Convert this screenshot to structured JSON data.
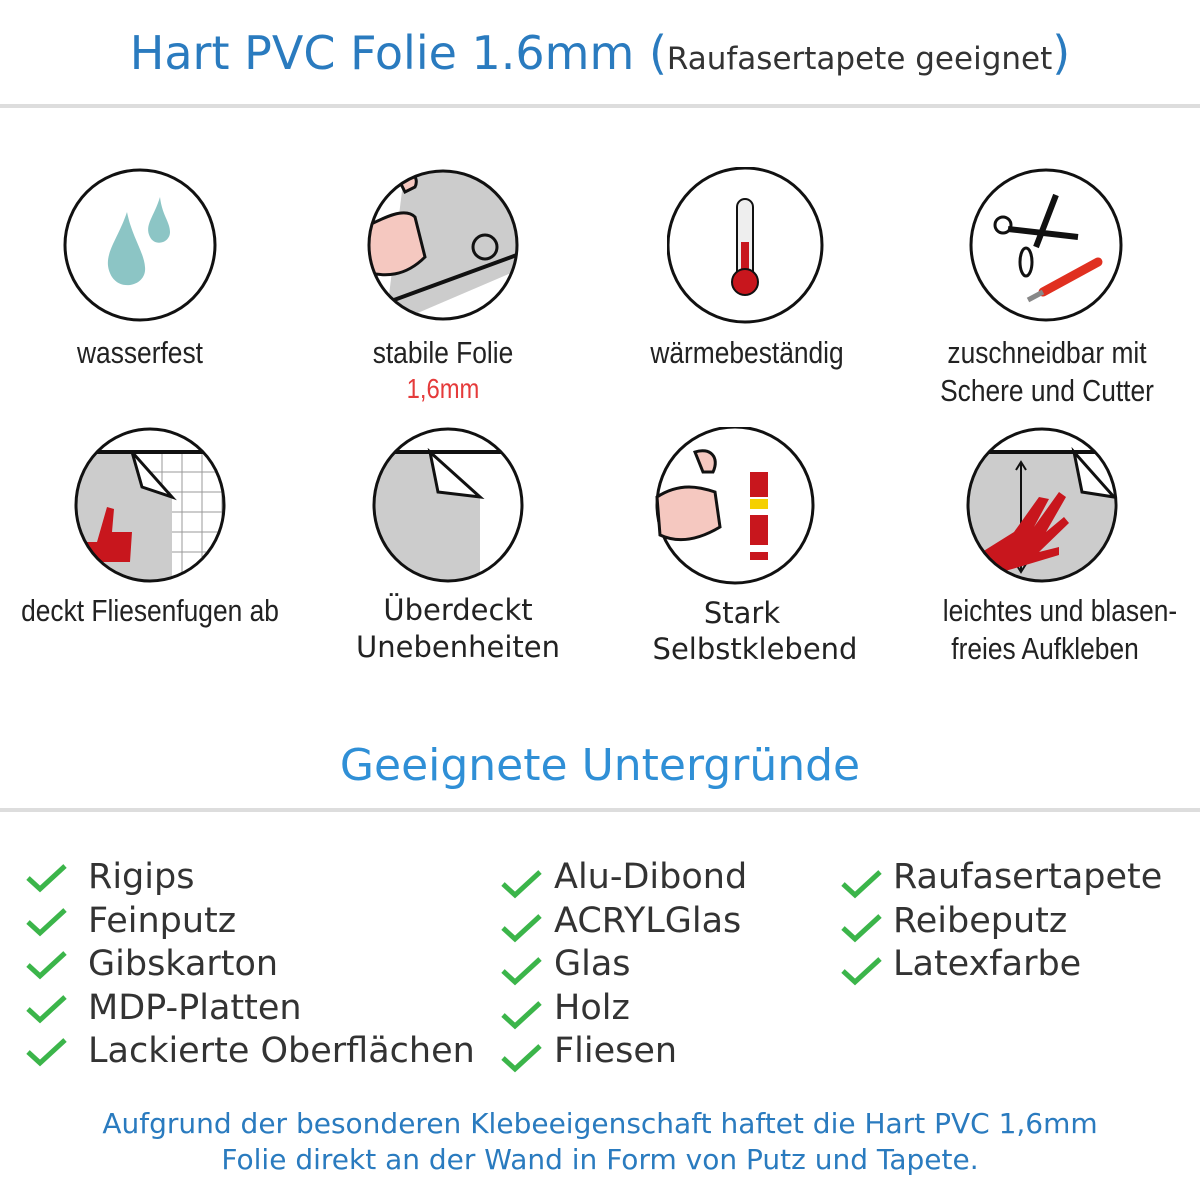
{
  "header": {
    "title": "Hart PVC Folie 1.6mm",
    "paren_open": "(",
    "subtitle": "Raufasertapete geeignet",
    "paren_close": ")"
  },
  "features": [
    {
      "icon": "water-drops-icon",
      "label": "wasserfest"
    },
    {
      "icon": "strong-arm-roll-icon",
      "label": "stabile Folie",
      "sublabel": "1,6mm"
    },
    {
      "icon": "thermometer-icon",
      "label": "wärmebeständig"
    },
    {
      "icon": "scissors-cutter-icon",
      "label": "zuschneidbar mit",
      "label2": "Schere und Cutter"
    },
    {
      "icon": "thumbs-up-tiles-icon",
      "label": "deckt Fliesenfugen ab"
    },
    {
      "icon": "peeling-foil-icon",
      "label": "Überdeckt",
      "label2": "Unebenheiten"
    },
    {
      "icon": "arm-glue-icon",
      "label": "Stark",
      "label2": "Selbstklebend"
    },
    {
      "icon": "hand-smoothing-icon",
      "label": "leichtes und blasen-",
      "label2": "freies Aufkleben"
    }
  ],
  "surfaces": {
    "title": "Geeignete Untergründe",
    "columns": [
      [
        "Rigips",
        "Feinputz",
        "Gibskarton",
        "MDP-Platten",
        "Lackierte Oberflächen"
      ],
      [
        "Alu-Dibond",
        "ACRYLGlas",
        "Glas",
        "Holz",
        "Fliesen"
      ],
      [
        "Raufasertapete",
        "Reibeputz",
        "Latexfarbe"
      ]
    ]
  },
  "footer": {
    "line1": "Aufgrund der besonderen Klebeeigenschaft haftet die Hart PVC 1,6mm",
    "line2": "Folie direkt an der Wand in Form von Putz und Tapete."
  },
  "colors": {
    "blue": "#2a7bbf",
    "check": "#3bb54a",
    "accent_red": "#e53b3b"
  }
}
